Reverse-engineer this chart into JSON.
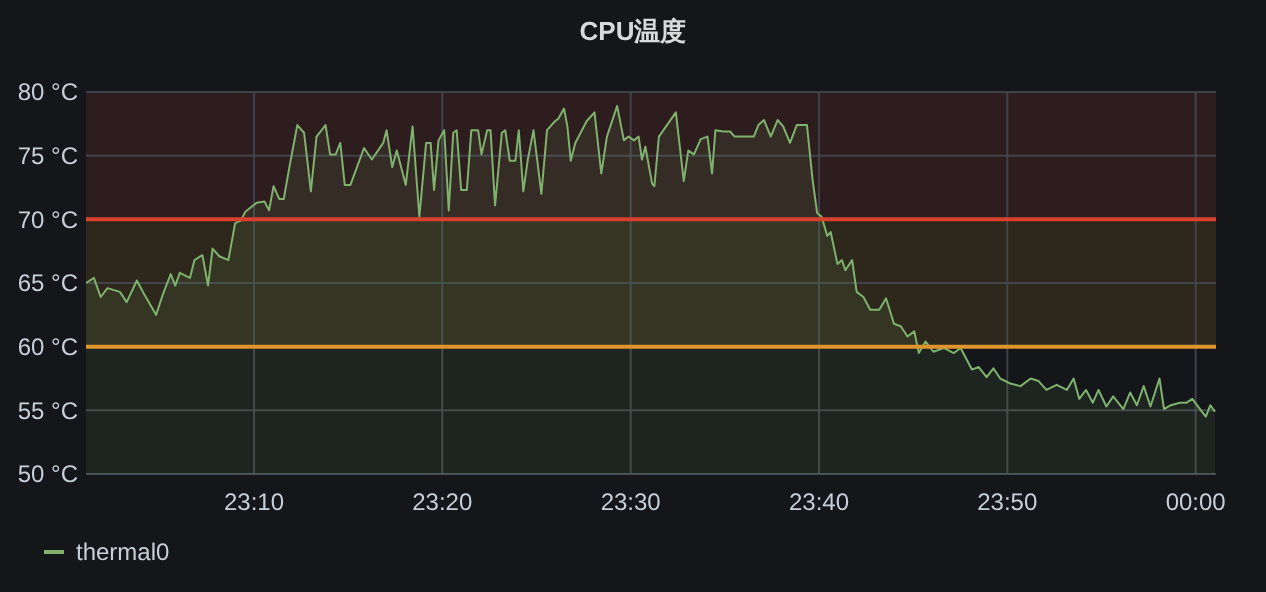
{
  "chart_data": {
    "type": "area",
    "title": "CPU温度",
    "legend": "bottom left",
    "grid": true,
    "marker": "none",
    "xlim": [
      23.018,
      24.018
    ],
    "xticks": [
      {
        "value": 23.1667,
        "label": "23:10"
      },
      {
        "value": 23.3333,
        "label": "23:20"
      },
      {
        "value": 23.5,
        "label": "23:30"
      },
      {
        "value": 23.6667,
        "label": "23:40"
      },
      {
        "value": 23.8333,
        "label": "23:50"
      },
      {
        "value": 24,
        "label": "00:00"
      }
    ],
    "ylim": [
      50,
      80
    ],
    "yticks": [
      {
        "value": 50,
        "label": "50 °C"
      },
      {
        "value": 55,
        "label": "55 °C"
      },
      {
        "value": 60,
        "label": "60 °C"
      },
      {
        "value": 65,
        "label": "65 °C"
      },
      {
        "value": 70,
        "label": "70 °C"
      },
      {
        "value": 75,
        "label": "75 °C"
      },
      {
        "value": 80,
        "label": "80 °C"
      }
    ],
    "bands": [
      {
        "axis": "y",
        "from": 70,
        "to": 80,
        "color": "#ef5350"
      },
      {
        "axis": "y",
        "from": 60,
        "to": 70,
        "color": "#e5a33a"
      }
    ],
    "ref_lines": [
      {
        "axis": "y",
        "value": 70,
        "color": "#d9402e"
      },
      {
        "axis": "y",
        "value": 60,
        "color": "#e0952c"
      }
    ],
    "series": [
      {
        "name": "thermal0",
        "color": "#7eb26d",
        "x": [
          23.018,
          23.025,
          23.031,
          23.037,
          23.048,
          23.054,
          23.063,
          23.069,
          23.08,
          23.086,
          23.093,
          23.097,
          23.101,
          23.11,
          23.114,
          23.121,
          23.126,
          23.13,
          23.136,
          23.144,
          23.15,
          23.155,
          23.159,
          23.169,
          23.176,
          23.18,
          23.184,
          23.189,
          23.193,
          23.198,
          23.205,
          23.211,
          23.217,
          23.222,
          23.23,
          23.234,
          23.239,
          23.243,
          23.247,
          23.252,
          23.264,
          23.271,
          23.281,
          23.284,
          23.289,
          23.293,
          23.301,
          23.307,
          23.313,
          23.319,
          23.323,
          23.326,
          23.33,
          23.335,
          23.339,
          23.343,
          23.346,
          23.35,
          23.355,
          23.359,
          23.365,
          23.368,
          23.373,
          23.376,
          23.38,
          23.386,
          23.389,
          23.393,
          23.398,
          23.401,
          23.405,
          23.409,
          23.414,
          23.421,
          23.426,
          23.433,
          23.436,
          23.441,
          23.444,
          23.447,
          23.451,
          23.461,
          23.468,
          23.474,
          23.479,
          23.488,
          23.494,
          23.498,
          23.503,
          23.507,
          23.51,
          23.513,
          23.519,
          23.521,
          23.525,
          23.54,
          23.547,
          23.551,
          23.556,
          23.562,
          23.568,
          23.572,
          23.575,
          23.582,
          23.588,
          23.592,
          23.609,
          23.613,
          23.618,
          23.624,
          23.63,
          23.635,
          23.641,
          23.647,
          23.656,
          23.661,
          23.665,
          23.669,
          23.674,
          23.677,
          23.683,
          23.687,
          23.69,
          23.696,
          23.7,
          23.706,
          23.712,
          23.72,
          23.726,
          23.733,
          23.739,
          23.745,
          23.751,
          23.755,
          23.761,
          23.768,
          23.777,
          23.786,
          23.792,
          23.802,
          23.808,
          23.815,
          23.821,
          23.827,
          23.836,
          23.845,
          23.854,
          23.861,
          23.868,
          23.877,
          23.886,
          23.892,
          23.897,
          23.903,
          23.909,
          23.914,
          23.921,
          23.927,
          23.936,
          23.942,
          23.948,
          23.954,
          23.96,
          23.968,
          23.972,
          23.978,
          23.986,
          23.992,
          23.997,
          24.003,
          24.009,
          24.013,
          24.017
        ],
        "values": [
          65.0,
          65.4,
          63.9,
          64.6,
          64.3,
          63.5,
          65.2,
          64.2,
          62.5,
          64.1,
          65.7,
          64.8,
          65.8,
          65.4,
          66.8,
          67.2,
          64.8,
          67.7,
          67.1,
          66.8,
          69.7,
          69.9,
          70.6,
          71.3,
          71.4,
          70.7,
          72.6,
          71.6,
          71.6,
          74.1,
          77.4,
          76.8,
          72.2,
          76.5,
          77.4,
          75.1,
          75.1,
          76.0,
          72.7,
          72.7,
          75.6,
          74.7,
          76.0,
          77.0,
          74.1,
          75.4,
          72.7,
          77.3,
          70.2,
          76.0,
          76.0,
          72.3,
          76.2,
          77.0,
          70.7,
          76.8,
          77.0,
          72.3,
          72.3,
          77.0,
          77.0,
          75.1,
          77.0,
          77.0,
          71.1,
          76.8,
          77.0,
          74.6,
          74.6,
          77.0,
          72.2,
          74.7,
          77.0,
          72.0,
          77.0,
          77.7,
          77.9,
          78.7,
          77.3,
          74.6,
          76.0,
          77.7,
          78.4,
          73.6,
          76.5,
          78.9,
          76.2,
          76.5,
          76.2,
          76.5,
          74.7,
          75.7,
          72.8,
          72.6,
          76.5,
          78.4,
          73.0,
          75.4,
          75.1,
          76.3,
          76.5,
          73.6,
          77.0,
          76.9,
          76.9,
          76.5,
          76.5,
          77.4,
          77.8,
          76.5,
          77.8,
          77.3,
          76.0,
          77.4,
          77.4,
          73.1,
          70.5,
          70.2,
          68.7,
          69.0,
          66.5,
          66.8,
          66.0,
          66.8,
          64.3,
          63.9,
          62.9,
          62.9,
          63.8,
          61.8,
          61.6,
          60.8,
          61.2,
          59.5,
          60.4,
          59.6,
          59.9,
          59.5,
          59.9,
          58.2,
          58.4,
          57.6,
          58.3,
          57.5,
          57.1,
          56.9,
          57.5,
          57.3,
          56.6,
          57.0,
          56.6,
          57.5,
          55.9,
          56.6,
          55.6,
          56.6,
          55.3,
          56.1,
          55.1,
          56.4,
          55.4,
          56.9,
          55.3,
          57.5,
          55.1,
          55.4,
          55.6,
          55.6,
          55.9,
          55.2,
          54.5,
          55.4,
          54.9
        ]
      }
    ]
  }
}
